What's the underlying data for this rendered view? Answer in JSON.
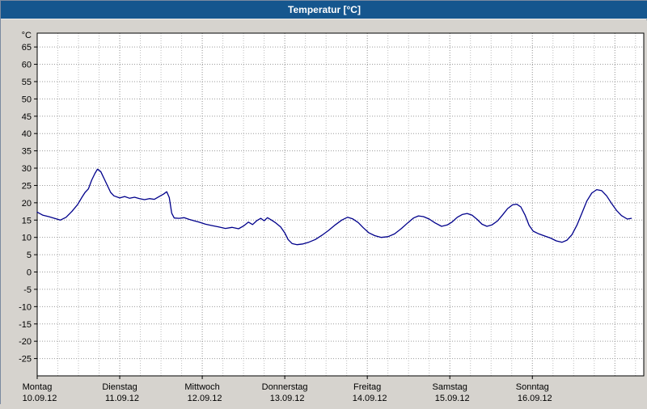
{
  "titlebar": {
    "title": "Temperatur [°C]",
    "bg_color": "#15568e"
  },
  "chart_data": {
    "type": "line",
    "title": "Temperatur [°C]",
    "ylabel": "°C",
    "xlabel": "",
    "grid": "dotted",
    "legend": "none",
    "ylim": [
      -30,
      69
    ],
    "xlim": [
      0,
      7.35
    ],
    "ytick_max": 65,
    "ytick_min": -25,
    "ytick_step": 5,
    "yticks": [
      65,
      60,
      55,
      50,
      45,
      40,
      35,
      30,
      25,
      20,
      15,
      10,
      5,
      0,
      -5,
      -10,
      -15,
      -20,
      -25
    ],
    "vgrid_step_days": 0.25,
    "days": [
      {
        "name": "Montag",
        "date": "10.09.12"
      },
      {
        "name": "Dienstag",
        "date": "11.09.12"
      },
      {
        "name": "Mittwoch",
        "date": "12.09.12"
      },
      {
        "name": "Donnerstag",
        "date": "13.09.12"
      },
      {
        "name": "Freitag",
        "date": "14.09.12"
      },
      {
        "name": "Samstag",
        "date": "15.09.12"
      },
      {
        "name": "Sonntag",
        "date": "16.09.12"
      }
    ],
    "colors": {
      "line": "#00008b",
      "grid_day": "#8f8f8f",
      "grid_minor": "#bdbdbd",
      "plot_bg": "#ffffff",
      "plot_border": "#000000",
      "panel_bg": "#d6d3ce",
      "text": "#000000"
    },
    "series": [
      {
        "name": "Temperatur",
        "unit": "°C",
        "color": "#00008b",
        "x": [
          0.0,
          0.07,
          0.14,
          0.21,
          0.28,
          0.35,
          0.42,
          0.49,
          0.54,
          0.58,
          0.62,
          0.66,
          0.7,
          0.73,
          0.77,
          0.81,
          0.85,
          0.89,
          0.93,
          1.0,
          1.06,
          1.12,
          1.18,
          1.24,
          1.3,
          1.36,
          1.42,
          1.48,
          1.53,
          1.57,
          1.6,
          1.63,
          1.66,
          1.72,
          1.78,
          1.84,
          1.9,
          1.96,
          2.04,
          2.12,
          2.2,
          2.28,
          2.36,
          2.44,
          2.5,
          2.56,
          2.61,
          2.66,
          2.71,
          2.75,
          2.79,
          2.84,
          2.89,
          2.95,
          3.0,
          3.04,
          3.09,
          3.15,
          3.22,
          3.29,
          3.37,
          3.45,
          3.53,
          3.61,
          3.69,
          3.76,
          3.82,
          3.89,
          3.95,
          4.02,
          4.09,
          4.17,
          4.25,
          4.33,
          4.41,
          4.49,
          4.56,
          4.62,
          4.68,
          4.75,
          4.82,
          4.9,
          4.97,
          5.03,
          5.09,
          5.15,
          5.21,
          5.27,
          5.33,
          5.39,
          5.45,
          5.51,
          5.58,
          5.64,
          5.7,
          5.76,
          5.81,
          5.86,
          5.91,
          5.96,
          6.01,
          6.08,
          6.15,
          6.22,
          6.29,
          6.36,
          6.42,
          6.48,
          6.54,
          6.6,
          6.66,
          6.72,
          6.78,
          6.84,
          6.9,
          6.96,
          7.02,
          7.08,
          7.15,
          7.2
        ],
        "y": [
          17.3,
          16.4,
          16.0,
          15.5,
          15.0,
          15.8,
          17.5,
          19.5,
          21.5,
          23.0,
          24.0,
          26.5,
          28.5,
          29.7,
          29.0,
          27.0,
          25.0,
          23.0,
          22.0,
          21.4,
          21.8,
          21.3,
          21.6,
          21.2,
          20.9,
          21.2,
          21.0,
          21.8,
          22.5,
          23.2,
          21.5,
          17.0,
          15.6,
          15.5,
          15.7,
          15.2,
          14.8,
          14.4,
          13.8,
          13.4,
          13.0,
          12.6,
          12.9,
          12.5,
          13.3,
          14.4,
          13.7,
          14.8,
          15.5,
          14.8,
          15.7,
          15.0,
          14.2,
          13.0,
          11.3,
          9.4,
          8.2,
          7.9,
          8.1,
          8.6,
          9.4,
          10.6,
          12.0,
          13.6,
          15.0,
          15.8,
          15.4,
          14.3,
          12.8,
          11.3,
          10.5,
          10.0,
          10.2,
          11.0,
          12.5,
          14.2,
          15.6,
          16.2,
          16.0,
          15.3,
          14.2,
          13.2,
          13.6,
          14.5,
          15.8,
          16.6,
          16.9,
          16.4,
          15.2,
          13.8,
          13.2,
          13.6,
          14.8,
          16.5,
          18.3,
          19.4,
          19.6,
          18.8,
          16.5,
          13.5,
          11.8,
          11.0,
          10.4,
          9.8,
          9.0,
          8.6,
          9.2,
          10.8,
          13.5,
          17.0,
          20.5,
          22.8,
          23.8,
          23.5,
          22.0,
          19.8,
          17.8,
          16.3,
          15.3,
          15.5
        ]
      }
    ]
  }
}
